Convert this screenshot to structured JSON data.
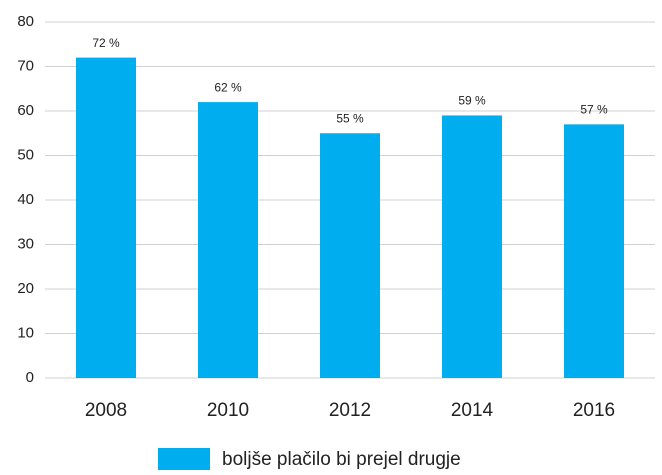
{
  "chart_data": {
    "type": "bar",
    "categories": [
      "2008",
      "2010",
      "2012",
      "2014",
      "2016"
    ],
    "series": [
      {
        "name": "boljše plačilo bi prejel drugje",
        "color": "#00aeef",
        "values": [
          72,
          62,
          55,
          59,
          57
        ],
        "value_labels": [
          "72 %",
          "62 %",
          "55 %",
          "59 %",
          "57 %"
        ]
      }
    ],
    "ylim": [
      0,
      80
    ],
    "yticks": [
      0,
      10,
      20,
      30,
      40,
      50,
      60,
      70,
      80
    ],
    "grid": true,
    "legend": "bottom"
  }
}
